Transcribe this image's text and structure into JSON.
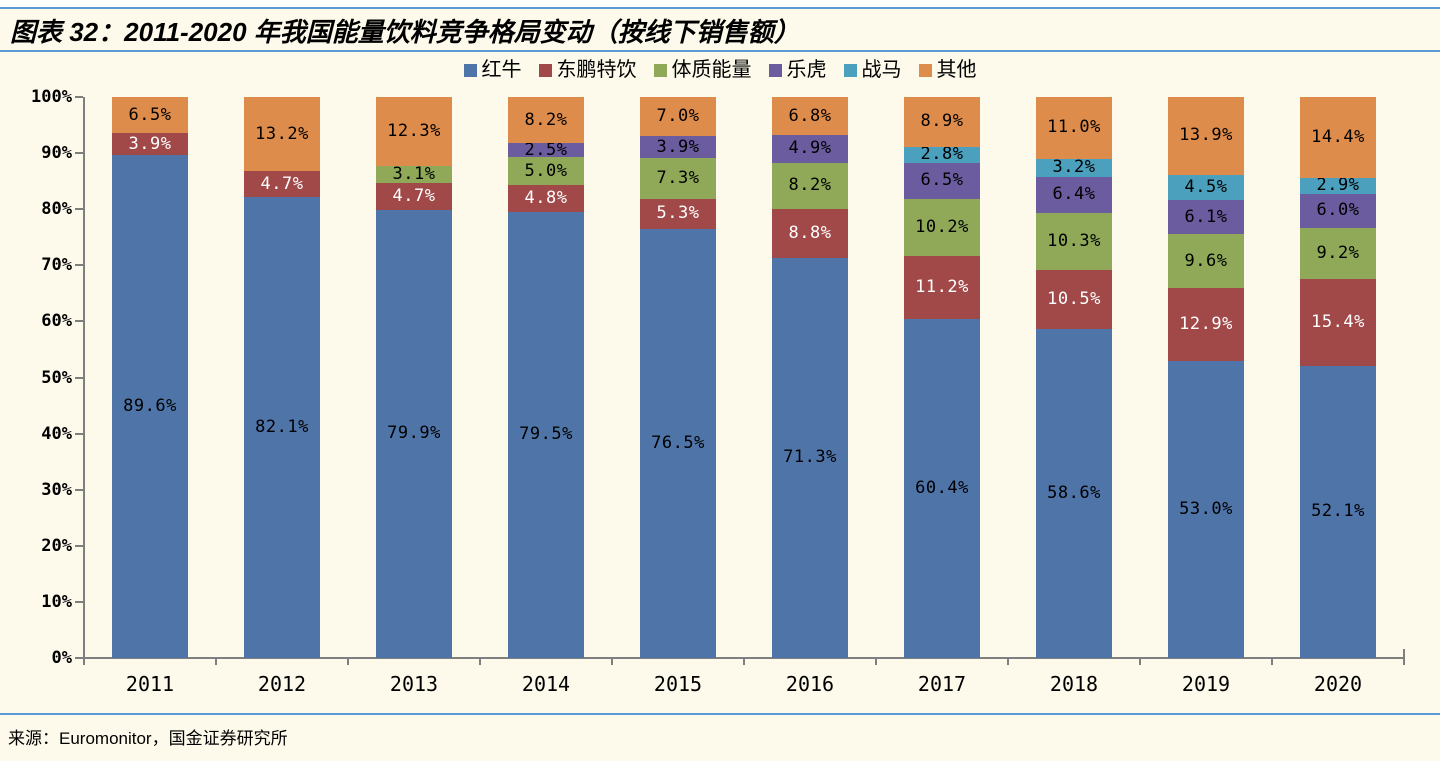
{
  "page": {
    "title": "图表 32：2011-2020 年我国能量饮料竞争格局变动（按线下销售额）",
    "source": "来源：Euromonitor，国金证券研究所"
  },
  "colors": {
    "background": "#FDFAEC",
    "top_strip": "#FFFFFF",
    "rule_blue": "#5B9BD5",
    "axis_gray": "#7F7F7F",
    "label_dark": "#000000",
    "label_light": "#FFFFFF"
  },
  "chart_data": {
    "type": "bar",
    "stacked": true,
    "unit": "%",
    "title": "2011-2020 年我国能量饮料竞争格局变动（按线下销售额）",
    "categories": [
      "2011",
      "2012",
      "2013",
      "2014",
      "2015",
      "2016",
      "2017",
      "2018",
      "2019",
      "2020"
    ],
    "series": [
      {
        "name": "红牛",
        "color": "#4F74A8",
        "label_color": "#000000",
        "values": [
          89.6,
          82.1,
          79.9,
          79.5,
          76.5,
          71.3,
          60.4,
          58.6,
          53.0,
          52.1
        ]
      },
      {
        "name": "东鹏特饮",
        "color": "#A14848",
        "label_color": "#FFFFFF",
        "values": [
          3.9,
          4.7,
          4.7,
          4.8,
          5.3,
          8.8,
          11.2,
          10.5,
          12.9,
          15.4
        ]
      },
      {
        "name": "体质能量",
        "color": "#8FA958",
        "label_color": "#000000",
        "values": [
          0,
          0,
          3.1,
          5.0,
          7.3,
          8.2,
          10.2,
          10.3,
          9.6,
          9.2
        ]
      },
      {
        "name": "乐虎",
        "color": "#6A5C9E",
        "label_color": "#000000",
        "values": [
          0,
          0,
          0,
          2.5,
          3.9,
          4.9,
          6.5,
          6.4,
          6.1,
          6.0
        ]
      },
      {
        "name": "战马",
        "color": "#4BA0BD",
        "label_color": "#000000",
        "values": [
          0,
          0,
          0,
          0,
          0,
          0,
          2.8,
          3.2,
          4.5,
          2.9
        ]
      },
      {
        "name": "其他",
        "color": "#DE8C4B",
        "label_color": "#000000",
        "values": [
          6.5,
          13.2,
          12.3,
          8.2,
          7.0,
          6.8,
          8.9,
          11.0,
          13.9,
          14.4
        ]
      }
    ],
    "y_ticks": [
      "0%",
      "10%",
      "20%",
      "30%",
      "40%",
      "50%",
      "60%",
      "70%",
      "80%",
      "90%",
      "100%"
    ],
    "ylim": [
      0,
      100
    ],
    "grid": false,
    "legend_position": "top",
    "value_label_format": "{value}%"
  }
}
